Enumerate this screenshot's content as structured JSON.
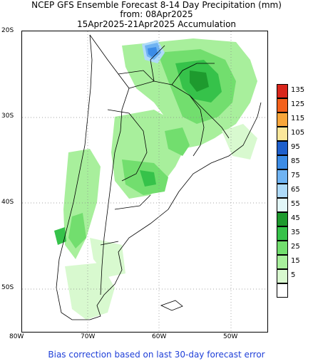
{
  "title": {
    "line1": "NCEP GFS Ensemble Forecast 8-14 Day Precipitation (mm)",
    "line2": "from: 08Apr2025",
    "line3": "15Apr2025-21Apr2025 Accumulation"
  },
  "map": {
    "lat_labels": [
      "20S",
      "30S",
      "40S",
      "50S"
    ],
    "lon_labels": [
      "80W",
      "70W",
      "60W",
      "50W"
    ],
    "grid": "dotted"
  },
  "legend": {
    "items": [
      {
        "label": "135",
        "color": "#d9261c"
      },
      {
        "label": "125",
        "color": "#f3611c"
      },
      {
        "label": "115",
        "color": "#f8a63a"
      },
      {
        "label": "105",
        "color": "#fbe79a"
      },
      {
        "label": "95",
        "color": "#1e5fcc"
      },
      {
        "label": "85",
        "color": "#3c8ce6"
      },
      {
        "label": "75",
        "color": "#6fb3f2"
      },
      {
        "label": "65",
        "color": "#aedaf9"
      },
      {
        "label": "55",
        "color": "#e2f7f8"
      },
      {
        "label": "45",
        "color": "#1e9a2e"
      },
      {
        "label": "35",
        "color": "#36c24a"
      },
      {
        "label": "25",
        "color": "#72de6e"
      },
      {
        "label": "15",
        "color": "#a8ef9c"
      },
      {
        "label": "5",
        "color": "#d8f9cf"
      },
      {
        "label": "",
        "color": "#ffffff"
      }
    ]
  },
  "footer": "Bias correction based on last 30-day forecast error"
}
